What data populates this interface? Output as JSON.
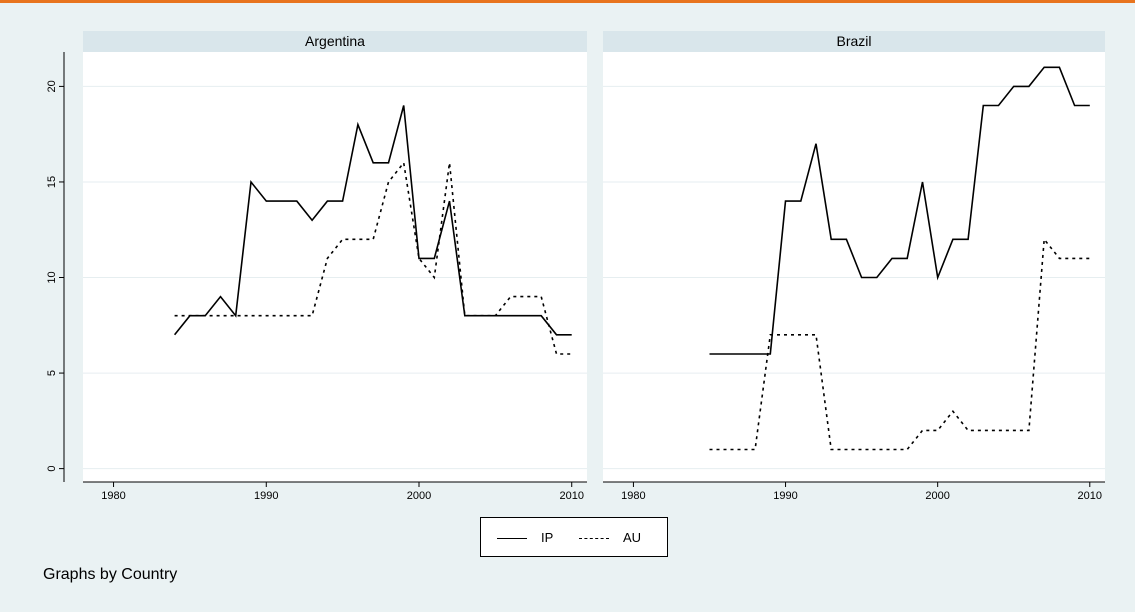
{
  "note": "Graphs by Country",
  "legend": [
    {
      "label": "IP",
      "style": "solid"
    },
    {
      "label": "AU",
      "style": "dashed"
    }
  ],
  "colors": {
    "background": "#eaf2f3",
    "panel": "#ffffff",
    "strip": "#d9e6eb",
    "line": "#000000",
    "accent": "#e8741e"
  },
  "chart_data": [
    {
      "type": "line",
      "title": "Argentina",
      "xlim": [
        1978,
        2011
      ],
      "ylim": [
        -0.7,
        21.8
      ],
      "xticks": [
        1980,
        1990,
        2000,
        2010
      ],
      "yticks": [
        0,
        5,
        10,
        15,
        20
      ],
      "grid": true,
      "series": [
        {
          "name": "IP",
          "style": "solid",
          "x": [
            1984,
            1985,
            1986,
            1987,
            1988,
            1989,
            1990,
            1991,
            1992,
            1993,
            1994,
            1995,
            1996,
            1997,
            1998,
            1999,
            2000,
            2001,
            2002,
            2003,
            2004,
            2005,
            2006,
            2007,
            2008,
            2009,
            2010
          ],
          "y": [
            7,
            8,
            8,
            9,
            8,
            15,
            14,
            14,
            14,
            13,
            14,
            14,
            18,
            16,
            16,
            19,
            11,
            11,
            14,
            8,
            8,
            8,
            8,
            8,
            8,
            7,
            7
          ]
        },
        {
          "name": "AU",
          "style": "dashed",
          "x": [
            1984,
            1985,
            1986,
            1987,
            1988,
            1989,
            1990,
            1991,
            1992,
            1993,
            1994,
            1995,
            1996,
            1997,
            1998,
            1999,
            2000,
            2001,
            2002,
            2003,
            2004,
            2005,
            2006,
            2007,
            2008,
            2009,
            2010
          ],
          "y": [
            8,
            8,
            8,
            8,
            8,
            8,
            8,
            8,
            8,
            8,
            11,
            12,
            12,
            12,
            15,
            16,
            11,
            10,
            16,
            8,
            8,
            8,
            9,
            9,
            9,
            6,
            6
          ]
        }
      ]
    },
    {
      "type": "line",
      "title": "Brazil",
      "xlim": [
        1978,
        2011
      ],
      "ylim": [
        -0.7,
        21.8
      ],
      "xticks": [
        1980,
        1990,
        2000,
        2010
      ],
      "yticks": [
        0,
        5,
        10,
        15,
        20
      ],
      "grid": true,
      "series": [
        {
          "name": "IP",
          "style": "solid",
          "x": [
            1985,
            1986,
            1987,
            1988,
            1989,
            1990,
            1991,
            1992,
            1993,
            1994,
            1995,
            1996,
            1997,
            1998,
            1999,
            2000,
            2001,
            2002,
            2003,
            2004,
            2005,
            2006,
            2007,
            2008,
            2009,
            2010
          ],
          "y": [
            6,
            6,
            6,
            6,
            6,
            14,
            14,
            17,
            12,
            12,
            10,
            10,
            11,
            11,
            15,
            10,
            12,
            12,
            19,
            19,
            20,
            20,
            21,
            21,
            19,
            19
          ]
        },
        {
          "name": "AU",
          "style": "dashed",
          "x": [
            1985,
            1986,
            1987,
            1988,
            1989,
            1990,
            1991,
            1992,
            1993,
            1994,
            1995,
            1996,
            1997,
            1998,
            1999,
            2000,
            2001,
            2002,
            2003,
            2004,
            2005,
            2006,
            2007,
            2008,
            2009,
            2010
          ],
          "y": [
            1,
            1,
            1,
            1,
            7,
            7,
            7,
            7,
            1,
            1,
            1,
            1,
            1,
            1,
            2,
            2,
            3,
            2,
            2,
            2,
            2,
            2,
            12,
            11,
            11,
            11
          ]
        }
      ]
    }
  ]
}
